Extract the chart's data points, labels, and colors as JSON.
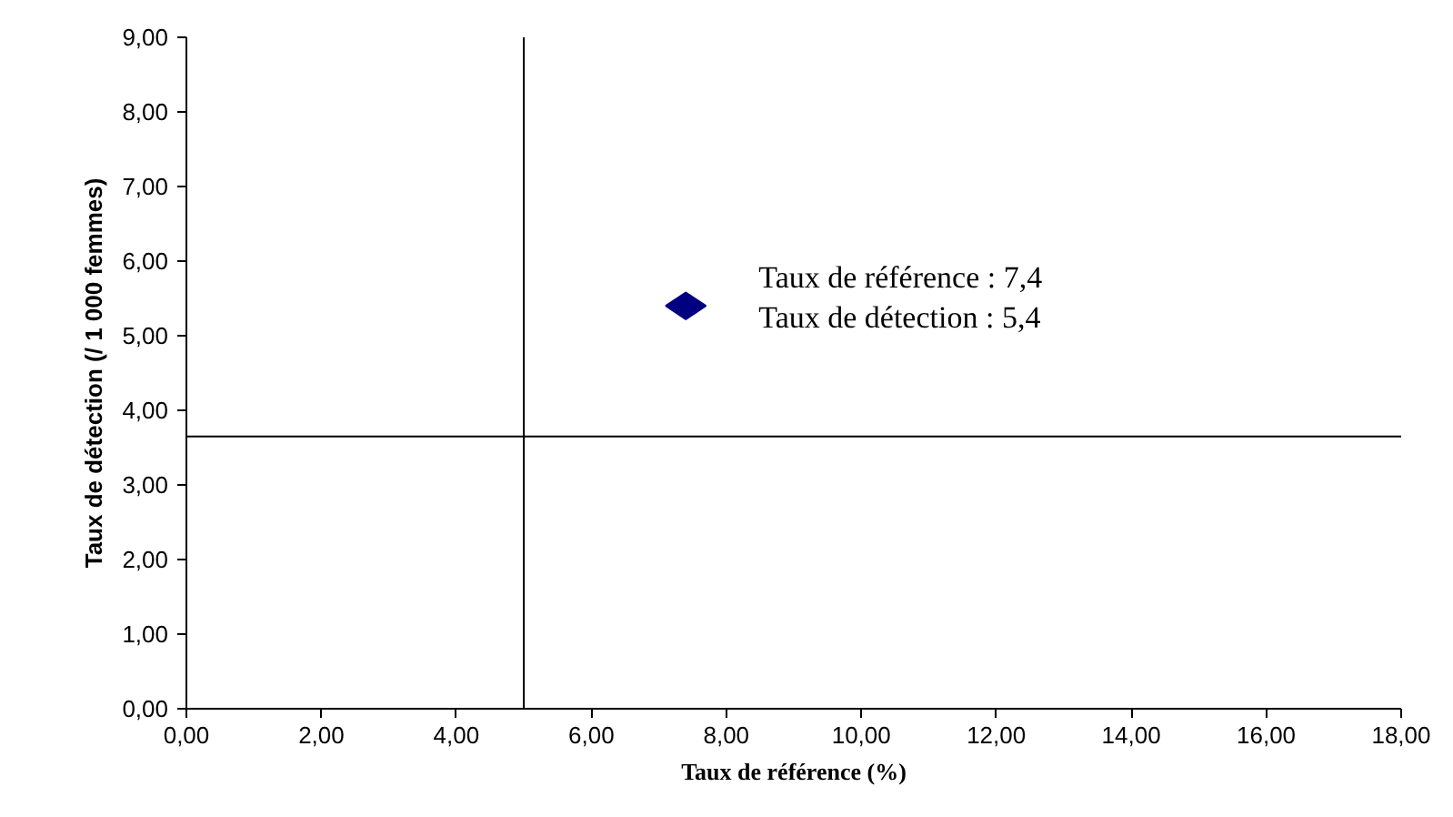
{
  "chart_data": {
    "type": "scatter",
    "xlabel": "Taux de référence (%)",
    "ylabel": "Taux de détection (/ 1 000 femmes)",
    "x": [
      7.4
    ],
    "values": [
      5.4
    ],
    "color": "#000080",
    "marker": "diamond",
    "xlim": [
      0,
      18
    ],
    "ylim": [
      0,
      9
    ],
    "xticks": [
      {
        "value": 0,
        "label": "0,00"
      },
      {
        "value": 2,
        "label": "2,00"
      },
      {
        "value": 4,
        "label": "4,00"
      },
      {
        "value": 6,
        "label": "6,00"
      },
      {
        "value": 8,
        "label": "8,00"
      },
      {
        "value": 10,
        "label": "10,00"
      },
      {
        "value": 12,
        "label": "12,00"
      },
      {
        "value": 14,
        "label": "14,00"
      },
      {
        "value": 16,
        "label": "16,00"
      },
      {
        "value": 18,
        "label": "18,00"
      }
    ],
    "yticks": [
      {
        "value": 0,
        "label": "0,00"
      },
      {
        "value": 1,
        "label": "1,00"
      },
      {
        "value": 2,
        "label": "2,00"
      },
      {
        "value": 3,
        "label": "3,00"
      },
      {
        "value": 4,
        "label": "4,00"
      },
      {
        "value": 5,
        "label": "5,00"
      },
      {
        "value": 6,
        "label": "6,00"
      },
      {
        "value": 7,
        "label": "7,00"
      },
      {
        "value": 8,
        "label": "8,00"
      },
      {
        "value": 9,
        "label": "9,00"
      }
    ],
    "ref_lines": [
      {
        "axis": "x",
        "value": 5.0,
        "color": "#000000"
      },
      {
        "axis": "y",
        "value": 3.65,
        "color": "#000000"
      }
    ],
    "annotations": [
      {
        "text": "Taux de référence : 7,4",
        "x": 7.4,
        "y": 5.4
      },
      {
        "text": "Taux de détection : 5,4",
        "x": 7.4,
        "y": 5.4
      }
    ],
    "grid": false
  }
}
